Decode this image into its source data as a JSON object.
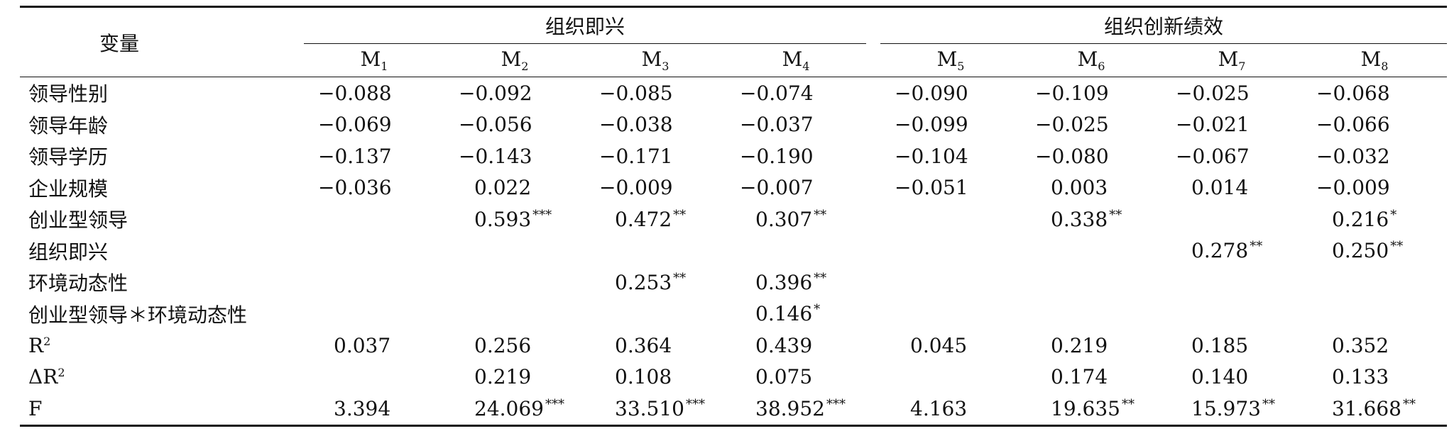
{
  "header": {
    "variable": "变量",
    "group1": "组织即兴",
    "group2": "组织创新绩效",
    "models": [
      {
        "base": "M",
        "sub": "1"
      },
      {
        "base": "M",
        "sub": "2"
      },
      {
        "base": "M",
        "sub": "3"
      },
      {
        "base": "M",
        "sub": "4"
      },
      {
        "base": "M",
        "sub": "5"
      },
      {
        "base": "M",
        "sub": "6"
      },
      {
        "base": "M",
        "sub": "7"
      },
      {
        "base": "M",
        "sub": "8"
      }
    ]
  },
  "rows": [
    {
      "label": "领导性别",
      "label_sup": "",
      "cells": [
        {
          "v": "−0.088",
          "s": ""
        },
        {
          "v": "−0.092",
          "s": ""
        },
        {
          "v": "−0.085",
          "s": ""
        },
        {
          "v": "−0.074",
          "s": ""
        },
        {
          "v": "−0.090",
          "s": ""
        },
        {
          "v": "−0.109",
          "s": ""
        },
        {
          "v": "−0.025",
          "s": ""
        },
        {
          "v": "−0.068",
          "s": ""
        }
      ]
    },
    {
      "label": "领导年龄",
      "label_sup": "",
      "cells": [
        {
          "v": "−0.069",
          "s": ""
        },
        {
          "v": "−0.056",
          "s": ""
        },
        {
          "v": "−0.038",
          "s": ""
        },
        {
          "v": "−0.037",
          "s": ""
        },
        {
          "v": "−0.099",
          "s": ""
        },
        {
          "v": "−0.025",
          "s": ""
        },
        {
          "v": "−0.021",
          "s": ""
        },
        {
          "v": "−0.066",
          "s": ""
        }
      ]
    },
    {
      "label": "领导学历",
      "label_sup": "",
      "cells": [
        {
          "v": "−0.137",
          "s": ""
        },
        {
          "v": "−0.143",
          "s": ""
        },
        {
          "v": "−0.171",
          "s": ""
        },
        {
          "v": "−0.190",
          "s": ""
        },
        {
          "v": "−0.104",
          "s": ""
        },
        {
          "v": "−0.080",
          "s": ""
        },
        {
          "v": "−0.067",
          "s": ""
        },
        {
          "v": "−0.032",
          "s": ""
        }
      ]
    },
    {
      "label": "企业规模",
      "label_sup": "",
      "cells": [
        {
          "v": "−0.036",
          "s": ""
        },
        {
          "v": "0.022",
          "s": ""
        },
        {
          "v": "−0.009",
          "s": ""
        },
        {
          "v": "−0.007",
          "s": ""
        },
        {
          "v": "−0.051",
          "s": ""
        },
        {
          "v": "0.003",
          "s": ""
        },
        {
          "v": "0.014",
          "s": ""
        },
        {
          "v": "−0.009",
          "s": ""
        }
      ]
    },
    {
      "label": "创业型领导",
      "label_sup": "",
      "cells": [
        {
          "v": "",
          "s": ""
        },
        {
          "v": "0.593",
          "s": "***"
        },
        {
          "v": "0.472",
          "s": "**"
        },
        {
          "v": "0.307",
          "s": "**"
        },
        {
          "v": "",
          "s": ""
        },
        {
          "v": "0.338",
          "s": "**"
        },
        {
          "v": "",
          "s": ""
        },
        {
          "v": "0.216",
          "s": "*"
        }
      ]
    },
    {
      "label": "组织即兴",
      "label_sup": "",
      "cells": [
        {
          "v": "",
          "s": ""
        },
        {
          "v": "",
          "s": ""
        },
        {
          "v": "",
          "s": ""
        },
        {
          "v": "",
          "s": ""
        },
        {
          "v": "",
          "s": ""
        },
        {
          "v": "",
          "s": ""
        },
        {
          "v": "0.278",
          "s": "**"
        },
        {
          "v": "0.250",
          "s": "**"
        }
      ]
    },
    {
      "label": "环境动态性",
      "label_sup": "",
      "cells": [
        {
          "v": "",
          "s": ""
        },
        {
          "v": "",
          "s": ""
        },
        {
          "v": "0.253",
          "s": "**"
        },
        {
          "v": "0.396",
          "s": "**"
        },
        {
          "v": "",
          "s": ""
        },
        {
          "v": "",
          "s": ""
        },
        {
          "v": "",
          "s": ""
        },
        {
          "v": "",
          "s": ""
        }
      ]
    },
    {
      "label": "创业型领导＊环境动态性",
      "label_sup": "",
      "cells": [
        {
          "v": "",
          "s": ""
        },
        {
          "v": "",
          "s": ""
        },
        {
          "v": "",
          "s": ""
        },
        {
          "v": "0.146",
          "s": "*"
        },
        {
          "v": "",
          "s": ""
        },
        {
          "v": "",
          "s": ""
        },
        {
          "v": "",
          "s": ""
        },
        {
          "v": "",
          "s": ""
        }
      ]
    },
    {
      "label": "R",
      "label_sup": "2",
      "cells": [
        {
          "v": "0.037",
          "s": ""
        },
        {
          "v": "0.256",
          "s": ""
        },
        {
          "v": "0.364",
          "s": ""
        },
        {
          "v": "0.439",
          "s": ""
        },
        {
          "v": "0.045",
          "s": ""
        },
        {
          "v": "0.219",
          "s": ""
        },
        {
          "v": "0.185",
          "s": ""
        },
        {
          "v": "0.352",
          "s": ""
        }
      ]
    },
    {
      "label": "ΔR",
      "label_sup": "2",
      "cells": [
        {
          "v": "",
          "s": ""
        },
        {
          "v": "0.219",
          "s": ""
        },
        {
          "v": "0.108",
          "s": ""
        },
        {
          "v": "0.075",
          "s": ""
        },
        {
          "v": "",
          "s": ""
        },
        {
          "v": "0.174",
          "s": ""
        },
        {
          "v": "0.140",
          "s": ""
        },
        {
          "v": "0.133",
          "s": ""
        }
      ]
    },
    {
      "label": "F",
      "label_sup": "",
      "cells": [
        {
          "v": "3.394",
          "s": ""
        },
        {
          "v": "24.069",
          "s": "***"
        },
        {
          "v": "33.510",
          "s": "***"
        },
        {
          "v": "38.952",
          "s": "***"
        },
        {
          "v": "4.163",
          "s": ""
        },
        {
          "v": "19.635",
          "s": "**"
        },
        {
          "v": "15.973",
          "s": "**"
        },
        {
          "v": "31.668",
          "s": "**"
        }
      ]
    }
  ]
}
